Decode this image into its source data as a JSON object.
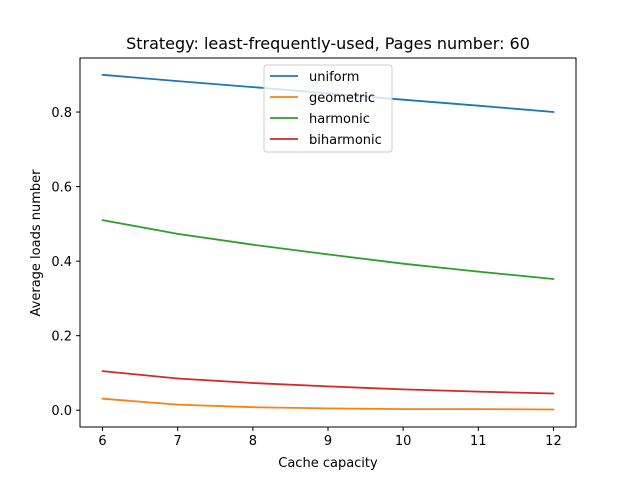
{
  "chart_data": {
    "type": "line",
    "title": "Strategy: least-frequently-used, Pages number: 60",
    "xlabel": "Cache capacity",
    "ylabel": "Average loads number",
    "x": [
      6,
      7,
      8,
      9,
      10,
      11,
      12
    ],
    "xlim": [
      5.7,
      12.3
    ],
    "ylim": [
      -0.045,
      0.945
    ],
    "xticks": [
      "6",
      "7",
      "8",
      "9",
      "10",
      "11",
      "12"
    ],
    "yticks": [
      "0.0",
      "0.2",
      "0.4",
      "0.6",
      "0.8"
    ],
    "grid": false,
    "legend_position": "upper center",
    "series": [
      {
        "name": "uniform",
        "color": "#1f77b4",
        "values": [
          0.9,
          0.883,
          0.867,
          0.85,
          0.833,
          0.817,
          0.8
        ]
      },
      {
        "name": "geometric",
        "color": "#ff7f0e",
        "values": [
          0.031,
          0.015,
          0.008,
          0.005,
          0.003,
          0.003,
          0.002
        ]
      },
      {
        "name": "harmonic",
        "color": "#2ca02c",
        "values": [
          0.51,
          0.473,
          0.444,
          0.418,
          0.393,
          0.372,
          0.352
        ]
      },
      {
        "name": "biharmonic",
        "color": "#d62728",
        "values": [
          0.105,
          0.085,
          0.073,
          0.064,
          0.056,
          0.05,
          0.045
        ]
      }
    ]
  }
}
